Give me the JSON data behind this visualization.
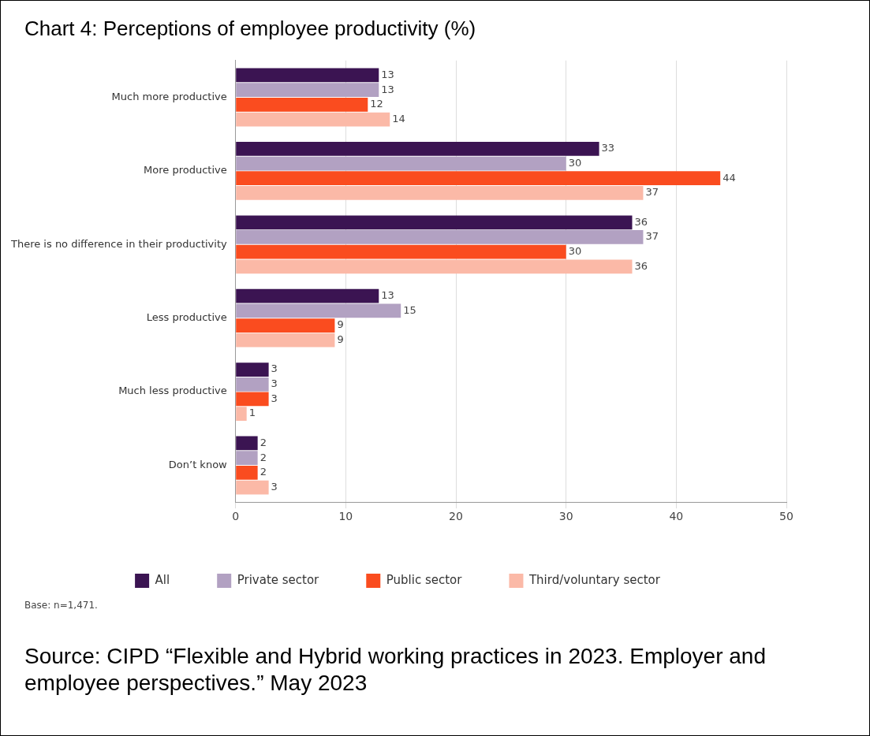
{
  "chart_data": {
    "type": "bar",
    "orientation": "horizontal",
    "title": "Chart 4: Perceptions of employee productivity (%)",
    "categories": [
      "Much more productive",
      "More productive",
      "There is no difference in their productivity",
      "Less productive",
      "Much less productive",
      "Don’t know"
    ],
    "series": [
      {
        "name": "All",
        "color": "#3b1452",
        "values": [
          13,
          33,
          36,
          13,
          3,
          2
        ]
      },
      {
        "name": "Private sector",
        "color": "#b2a1c2",
        "values": [
          13,
          30,
          37,
          15,
          3,
          2
        ]
      },
      {
        "name": "Public sector",
        "color": "#fa4c1f",
        "values": [
          12,
          44,
          30,
          9,
          3,
          2
        ]
      },
      {
        "name": "Third/voluntary sector",
        "color": "#fbb9a7",
        "values": [
          14,
          37,
          36,
          9,
          1,
          3
        ]
      }
    ],
    "xlim": [
      0,
      50
    ],
    "xticks": [
      0,
      10,
      20,
      30,
      40,
      50
    ],
    "grid": "x",
    "legend": "bottom",
    "data_labels": true,
    "annotations": [
      "Base: n=1,471.",
      "Source: CIPD “Flexible and Hybrid working practices in 2023. Employer and employee perspectives.” May 2023"
    ]
  }
}
